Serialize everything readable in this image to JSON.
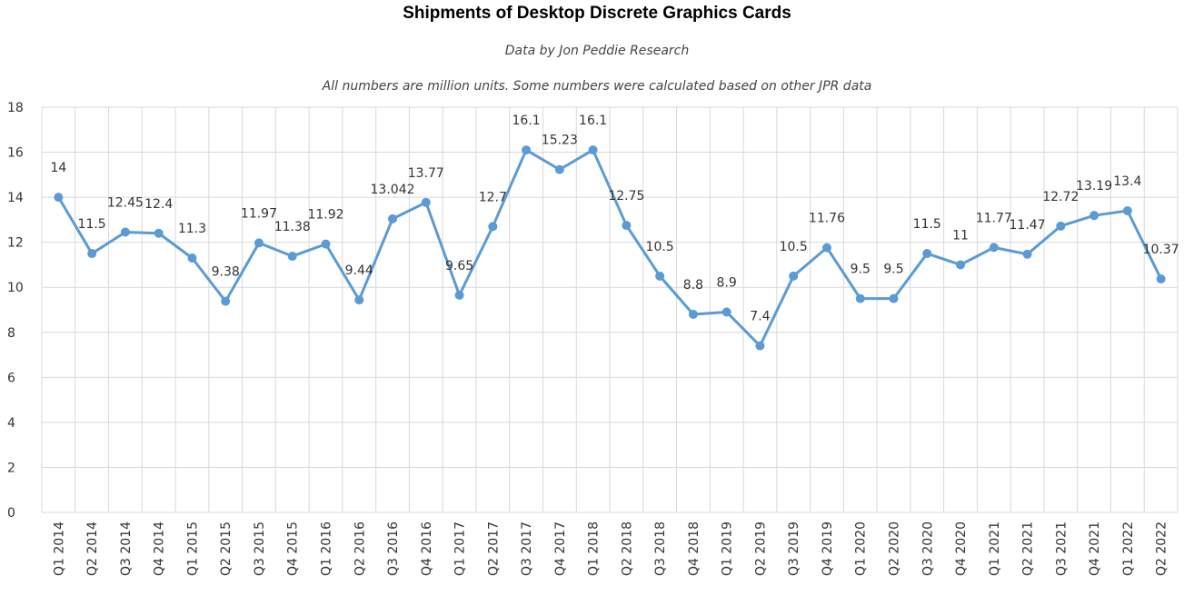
{
  "header": {
    "title": "Shipments of Desktop Discrete Graphics Cards",
    "subtitle1": "Data by Jon Peddie Research",
    "subtitle2": "All numbers are million units. Some numbers were calculated based on other JPR data"
  },
  "chart_data": {
    "type": "line",
    "title": "Shipments of Desktop Discrete Graphics Cards",
    "xlabel": "",
    "ylabel": "",
    "ylim": [
      0,
      18
    ],
    "yticks": [
      0,
      2,
      4,
      6,
      8,
      10,
      12,
      14,
      16,
      18
    ],
    "grid": true,
    "legend": "none",
    "color": "#5B9BD5",
    "categories": [
      "Q1 2014",
      "Q2 2014",
      "Q3 2014",
      "Q4 2014",
      "Q1 2015",
      "Q2 2015",
      "Q3 2015",
      "Q4 2015",
      "Q1 2016",
      "Q2 2016",
      "Q3 2016",
      "Q4 2016",
      "Q1 2017",
      "Q2 2017",
      "Q3 2017",
      "Q4 2017",
      "Q1 2018",
      "Q2 2018",
      "Q3 2018",
      "Q4 2018",
      "Q1 2019",
      "Q2 2019",
      "Q3 2019",
      "Q4 2019",
      "Q1 2020",
      "Q2 2020",
      "Q3 2020",
      "Q4 2020",
      "Q1 2021",
      "Q2 2021",
      "Q3 2021",
      "Q4 2021",
      "Q1 2022",
      "Q2 2022"
    ],
    "values": [
      14,
      11.5,
      12.45,
      12.4,
      11.3,
      9.38,
      11.97,
      11.38,
      11.92,
      9.44,
      13.042,
      13.77,
      9.65,
      12.7,
      16.1,
      15.23,
      16.1,
      12.75,
      10.5,
      8.8,
      8.9,
      7.4,
      10.5,
      11.76,
      9.5,
      9.5,
      11.5,
      11,
      11.77,
      11.47,
      12.72,
      13.19,
      13.4,
      10.37
    ],
    "data_labels": [
      "14",
      "11.5",
      "12.45",
      "12.4",
      "11.3",
      "9.38",
      "11.97",
      "11.38",
      "11.92",
      "9.44",
      "13.042",
      "13.77",
      "9.65",
      "12.7",
      "16.1",
      "15.23",
      "16.1",
      "12.75",
      "10.5",
      "8.8",
      "8.9",
      "7.4",
      "10.5",
      "11.76",
      "9.5",
      "9.5",
      "11.5",
      "11",
      "11.77",
      "11.47",
      "12.72",
      "13.19",
      "13.4",
      "10.37"
    ]
  }
}
